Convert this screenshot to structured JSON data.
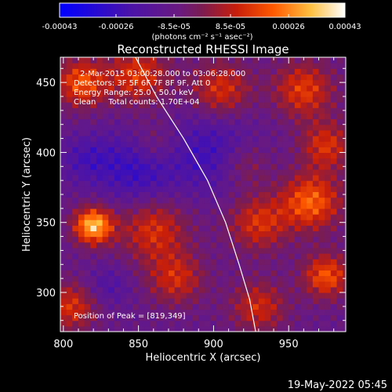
{
  "chart_data": {
    "type": "heatmap",
    "title": "Reconstructed RHESSI Image",
    "xlabel": "Heliocentric X (arcsec)",
    "ylabel": "Heliocentric Y (arcsec)",
    "xlim": [
      798,
      988
    ],
    "ylim": [
      272,
      468
    ],
    "x_ticks": [
      800,
      850,
      900,
      950
    ],
    "y_ticks": [
      300,
      350,
      400,
      450
    ],
    "colorbar": {
      "ticks": [
        "-0.00043",
        "-0.00026",
        "-8.5e-05",
        "8.5e-05",
        "0.00026",
        "0.00043"
      ],
      "tick_values": [
        -0.00043,
        -0.00026,
        -8.5e-05,
        8.5e-05,
        0.00026,
        0.00043
      ],
      "range": [
        -0.00043,
        0.00043
      ],
      "units_label": "(photons cm⁻² s⁻¹ asec⁻²)"
    },
    "annotations": {
      "time_range": "2-Mar-2015 03:00:28.000 to 03:06:28.000",
      "detectors": "Detectors: 3F 5F 6F 7F 8F 9F, Att 0",
      "energy_range": "Energy Range: 25.0 - 50.0 keV",
      "clean_totals": "Clean     Total counts: 1.70E+04",
      "peak_position": "Position of Peak = [819,349]"
    },
    "peak": {
      "x": 819,
      "y": 349
    },
    "limb_line": [
      [
        848,
        468
      ],
      [
        862,
        440
      ],
      [
        880,
        410
      ],
      [
        896,
        380
      ],
      [
        908,
        350
      ],
      [
        917,
        320
      ],
      [
        924,
        295
      ],
      [
        928,
        272
      ]
    ],
    "sources": [
      {
        "x": 820,
        "y": 348,
        "sigma": 9,
        "amp": 0.00043
      },
      {
        "x": 812,
        "y": 450,
        "sigma": 12,
        "amp": 0.00028
      },
      {
        "x": 850,
        "y": 455,
        "sigma": 14,
        "amp": 0.00024
      },
      {
        "x": 905,
        "y": 445,
        "sigma": 14,
        "amp": 0.00022
      },
      {
        "x": 960,
        "y": 445,
        "sigma": 14,
        "amp": 0.00024
      },
      {
        "x": 975,
        "y": 405,
        "sigma": 12,
        "amp": 0.00022
      },
      {
        "x": 965,
        "y": 365,
        "sigma": 14,
        "amp": 0.0003
      },
      {
        "x": 930,
        "y": 350,
        "sigma": 14,
        "amp": 0.00022
      },
      {
        "x": 860,
        "y": 345,
        "sigma": 16,
        "amp": 0.00022
      },
      {
        "x": 875,
        "y": 310,
        "sigma": 13,
        "amp": 0.0002
      },
      {
        "x": 805,
        "y": 290,
        "sigma": 12,
        "amp": 0.00022
      },
      {
        "x": 930,
        "y": 290,
        "sigma": 13,
        "amp": 0.0002
      },
      {
        "x": 975,
        "y": 312,
        "sigma": 11,
        "amp": 0.00028
      },
      {
        "x": 860,
        "y": 405,
        "sigma": 12,
        "amp": 0.00014
      },
      {
        "x": 920,
        "y": 392,
        "sigma": 12,
        "amp": 0.00014
      },
      {
        "x": 850,
        "y": 390,
        "sigma": 18,
        "amp": -0.0002
      },
      {
        "x": 900,
        "y": 400,
        "sigma": 20,
        "amp": -0.00016
      },
      {
        "x": 815,
        "y": 395,
        "sigma": 12,
        "amp": -0.00012
      },
      {
        "x": 830,
        "y": 305,
        "sigma": 10,
        "amp": -0.0001
      }
    ]
  },
  "footer": {
    "timestamp": "19-May-2022 05:45"
  }
}
